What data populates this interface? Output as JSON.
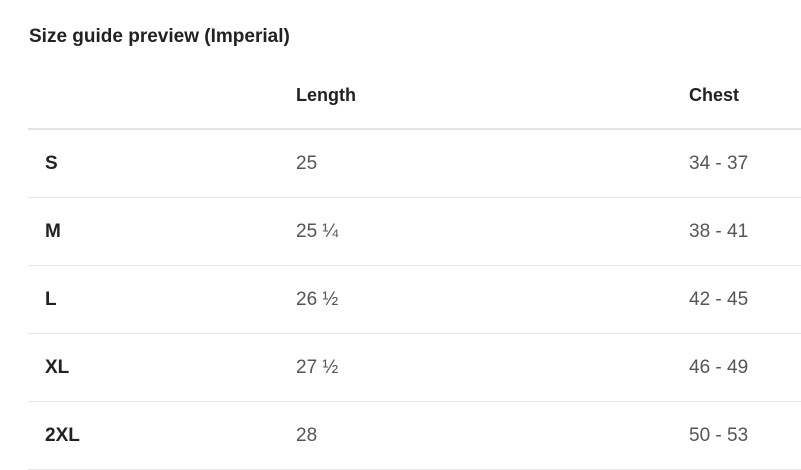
{
  "title": "Size guide preview (Imperial)",
  "headers": [
    "",
    "Length",
    "Chest"
  ],
  "rows": [
    {
      "size": "S",
      "length": "25",
      "chest": "34 - 37"
    },
    {
      "size": "M",
      "length": "25 ¼",
      "chest": "38 - 41"
    },
    {
      "size": "L",
      "length": "26 ½",
      "chest": "42 - 45"
    },
    {
      "size": "XL",
      "length": "27 ½",
      "chest": "46 - 49"
    },
    {
      "size": "2XL",
      "length": "28",
      "chest": "50 - 53"
    }
  ]
}
